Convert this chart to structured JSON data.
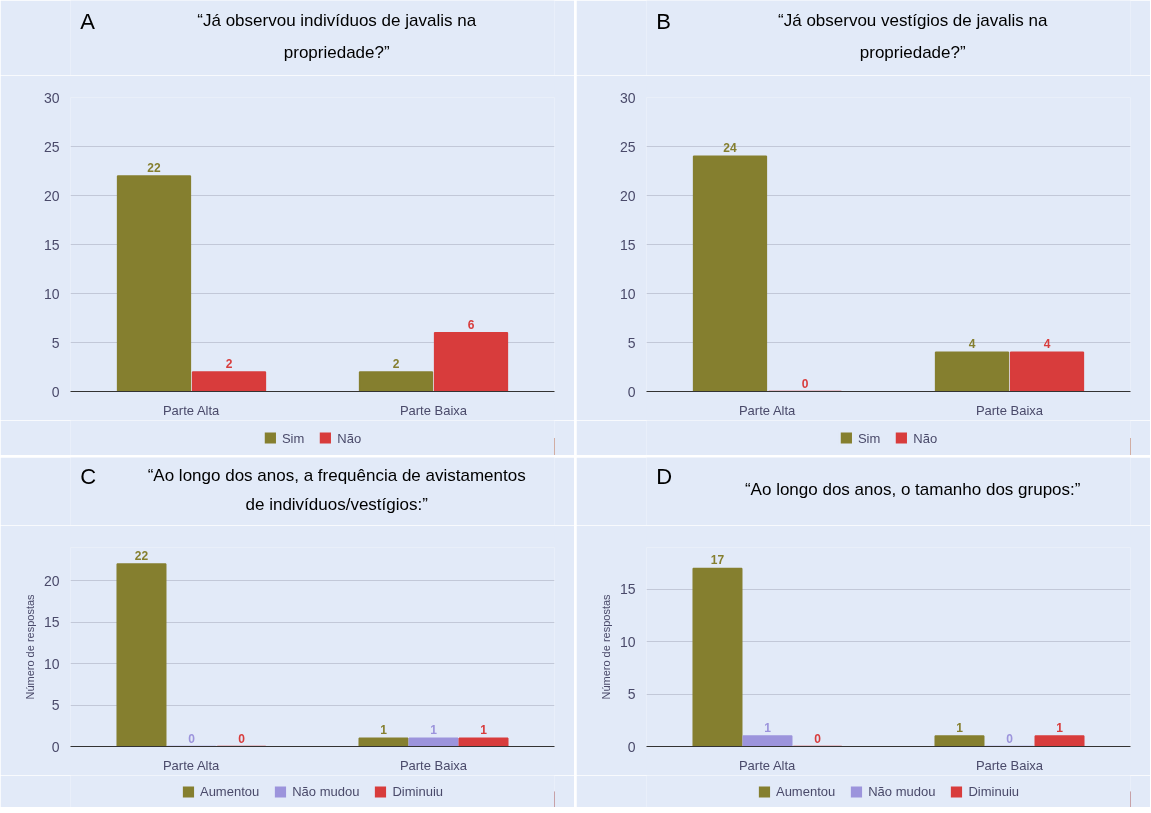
{
  "chart_data": [
    {
      "type": "bar",
      "title": "“Já observou indivíduos de javalis na propriedade?”",
      "annotations": [
        "A"
      ],
      "categories": [
        "Parte Alta",
        "Parte Baixa"
      ],
      "series": [
        {
          "name": "Sim",
          "color": "#857f2f",
          "values": [
            22,
            2
          ]
        },
        {
          "name": "Não",
          "color": "#d83c3c",
          "values": [
            2,
            6
          ]
        }
      ],
      "ylim": [
        0,
        30
      ],
      "yticks": [
        0,
        5,
        10,
        15,
        20,
        25,
        30
      ],
      "grid": "y",
      "legend": "bottom",
      "data_labels": true
    },
    {
      "type": "bar",
      "title": "“Já observou vestígios de javalis na propriedade?”",
      "annotations": [
        "B"
      ],
      "categories": [
        "Parte Alta",
        "Parte Baixa"
      ],
      "series": [
        {
          "name": "Sim",
          "color": "#857f2f",
          "values": [
            24,
            4
          ]
        },
        {
          "name": "Não",
          "color": "#d83c3c",
          "values": [
            0,
            4
          ]
        }
      ],
      "ylim": [
        0,
        30
      ],
      "yticks": [
        0,
        5,
        10,
        15,
        20,
        25,
        30
      ],
      "grid": "y",
      "legend": "bottom",
      "data_labels": true
    },
    {
      "type": "bar",
      "title": "“Ao longo dos anos, a frequência de avistamentos de indivíduos/vestígios:”",
      "annotations": [
        "C"
      ],
      "ylabel": "Número de respostas",
      "categories": [
        "Parte Alta",
        "Parte Baixa"
      ],
      "series": [
        {
          "name": "Aumentou",
          "color": "#857f2f",
          "values": [
            22,
            1
          ]
        },
        {
          "name": "Não mudou",
          "color": "#9c94dc",
          "values": [
            0,
            1
          ]
        },
        {
          "name": "Diminuiu",
          "color": "#d83c3c",
          "values": [
            0,
            1
          ]
        }
      ],
      "ylim": [
        0,
        24
      ],
      "yticks": [
        0,
        5,
        10,
        15,
        20
      ],
      "grid": "y",
      "legend": "bottom",
      "data_labels": true
    },
    {
      "type": "bar",
      "title": "“Ao longo dos anos, o tamanho dos grupos:”",
      "annotations": [
        "D"
      ],
      "ylabel": "Número de respostas",
      "categories": [
        "Parte Alta",
        "Parte Baixa"
      ],
      "series": [
        {
          "name": "Aumentou",
          "color": "#857f2f",
          "values": [
            17,
            1
          ]
        },
        {
          "name": "Não mudou",
          "color": "#9c94dc",
          "values": [
            1,
            0
          ]
        },
        {
          "name": "Diminuiu",
          "color": "#d83c3c",
          "values": [
            0,
            1
          ]
        }
      ],
      "ylim": [
        0,
        19
      ],
      "yticks": [
        0,
        5,
        10,
        15
      ],
      "grid": "y",
      "legend": "bottom",
      "data_labels": true
    }
  ]
}
